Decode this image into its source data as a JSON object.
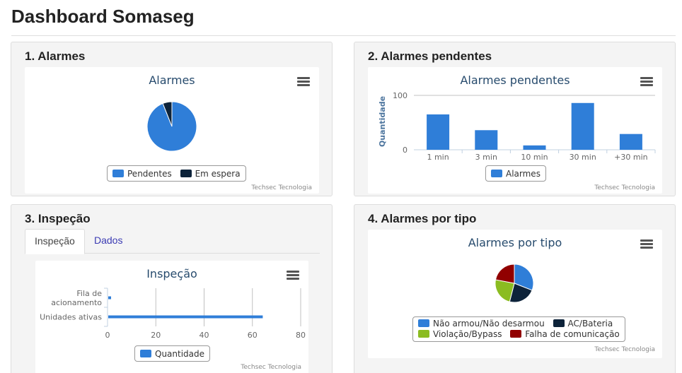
{
  "page": {
    "title": "Dashboard Somaseg"
  },
  "credit": "Techsec Tecnologia",
  "panels": {
    "alarmes": {
      "title": "1. Alarmes",
      "chart_title": "Alarmes",
      "legend": [
        "Pendentes",
        "Em espera"
      ]
    },
    "pendentes": {
      "title": "2. Alarmes pendentes",
      "chart_title": "Alarmes pendentes",
      "ylabel": "Quantidade",
      "legend": [
        "Alarmes"
      ]
    },
    "inspecao": {
      "title": "3. Inspeção",
      "tabs": [
        "Inspeção",
        "Dados"
      ],
      "chart_title": "Inspeção",
      "legend": [
        "Quantidade"
      ]
    },
    "tipo": {
      "title": "4. Alarmes por tipo",
      "chart_title": "Alarmes por tipo",
      "legend": [
        "Não armou/Não desarmou",
        "AC/Bateria",
        "Violação/Bypass",
        "Falha de comunicação"
      ]
    }
  },
  "colors": {
    "blue": "#2f7ed8",
    "navy": "#0d233a",
    "green": "#8bbc21",
    "darkred": "#910000",
    "title": "#274b6d"
  },
  "chart_data": [
    {
      "type": "pie",
      "title": "Alarmes",
      "categories": [
        "Pendentes",
        "Em espera"
      ],
      "values": [
        94,
        6
      ]
    },
    {
      "type": "bar",
      "title": "Alarmes pendentes",
      "categories": [
        "1 min",
        "3 min",
        "10 min",
        "30 min",
        "+30 min"
      ],
      "series": [
        {
          "name": "Alarmes",
          "values": [
            65,
            36,
            8,
            86,
            29
          ]
        }
      ],
      "ylabel": "Quantidade",
      "yticks": [
        0,
        100
      ],
      "ylim": [
        0,
        100
      ],
      "grid": true
    },
    {
      "type": "bar",
      "orientation": "horizontal",
      "title": "Inspeção",
      "categories": [
        "Fila de acionamento",
        "Unidades ativas"
      ],
      "series": [
        {
          "name": "Quantidade",
          "values": [
            1,
            64
          ]
        }
      ],
      "xticks": [
        0,
        20,
        40,
        60,
        80
      ],
      "xlim": [
        0,
        80
      ],
      "grid": true
    },
    {
      "type": "pie",
      "title": "Alarmes por tipo",
      "categories": [
        "Não armou/Não desarmou",
        "AC/Bateria",
        "Violação/Bypass",
        "Falha de comunicação"
      ],
      "values": [
        31,
        23,
        24,
        22
      ]
    }
  ]
}
